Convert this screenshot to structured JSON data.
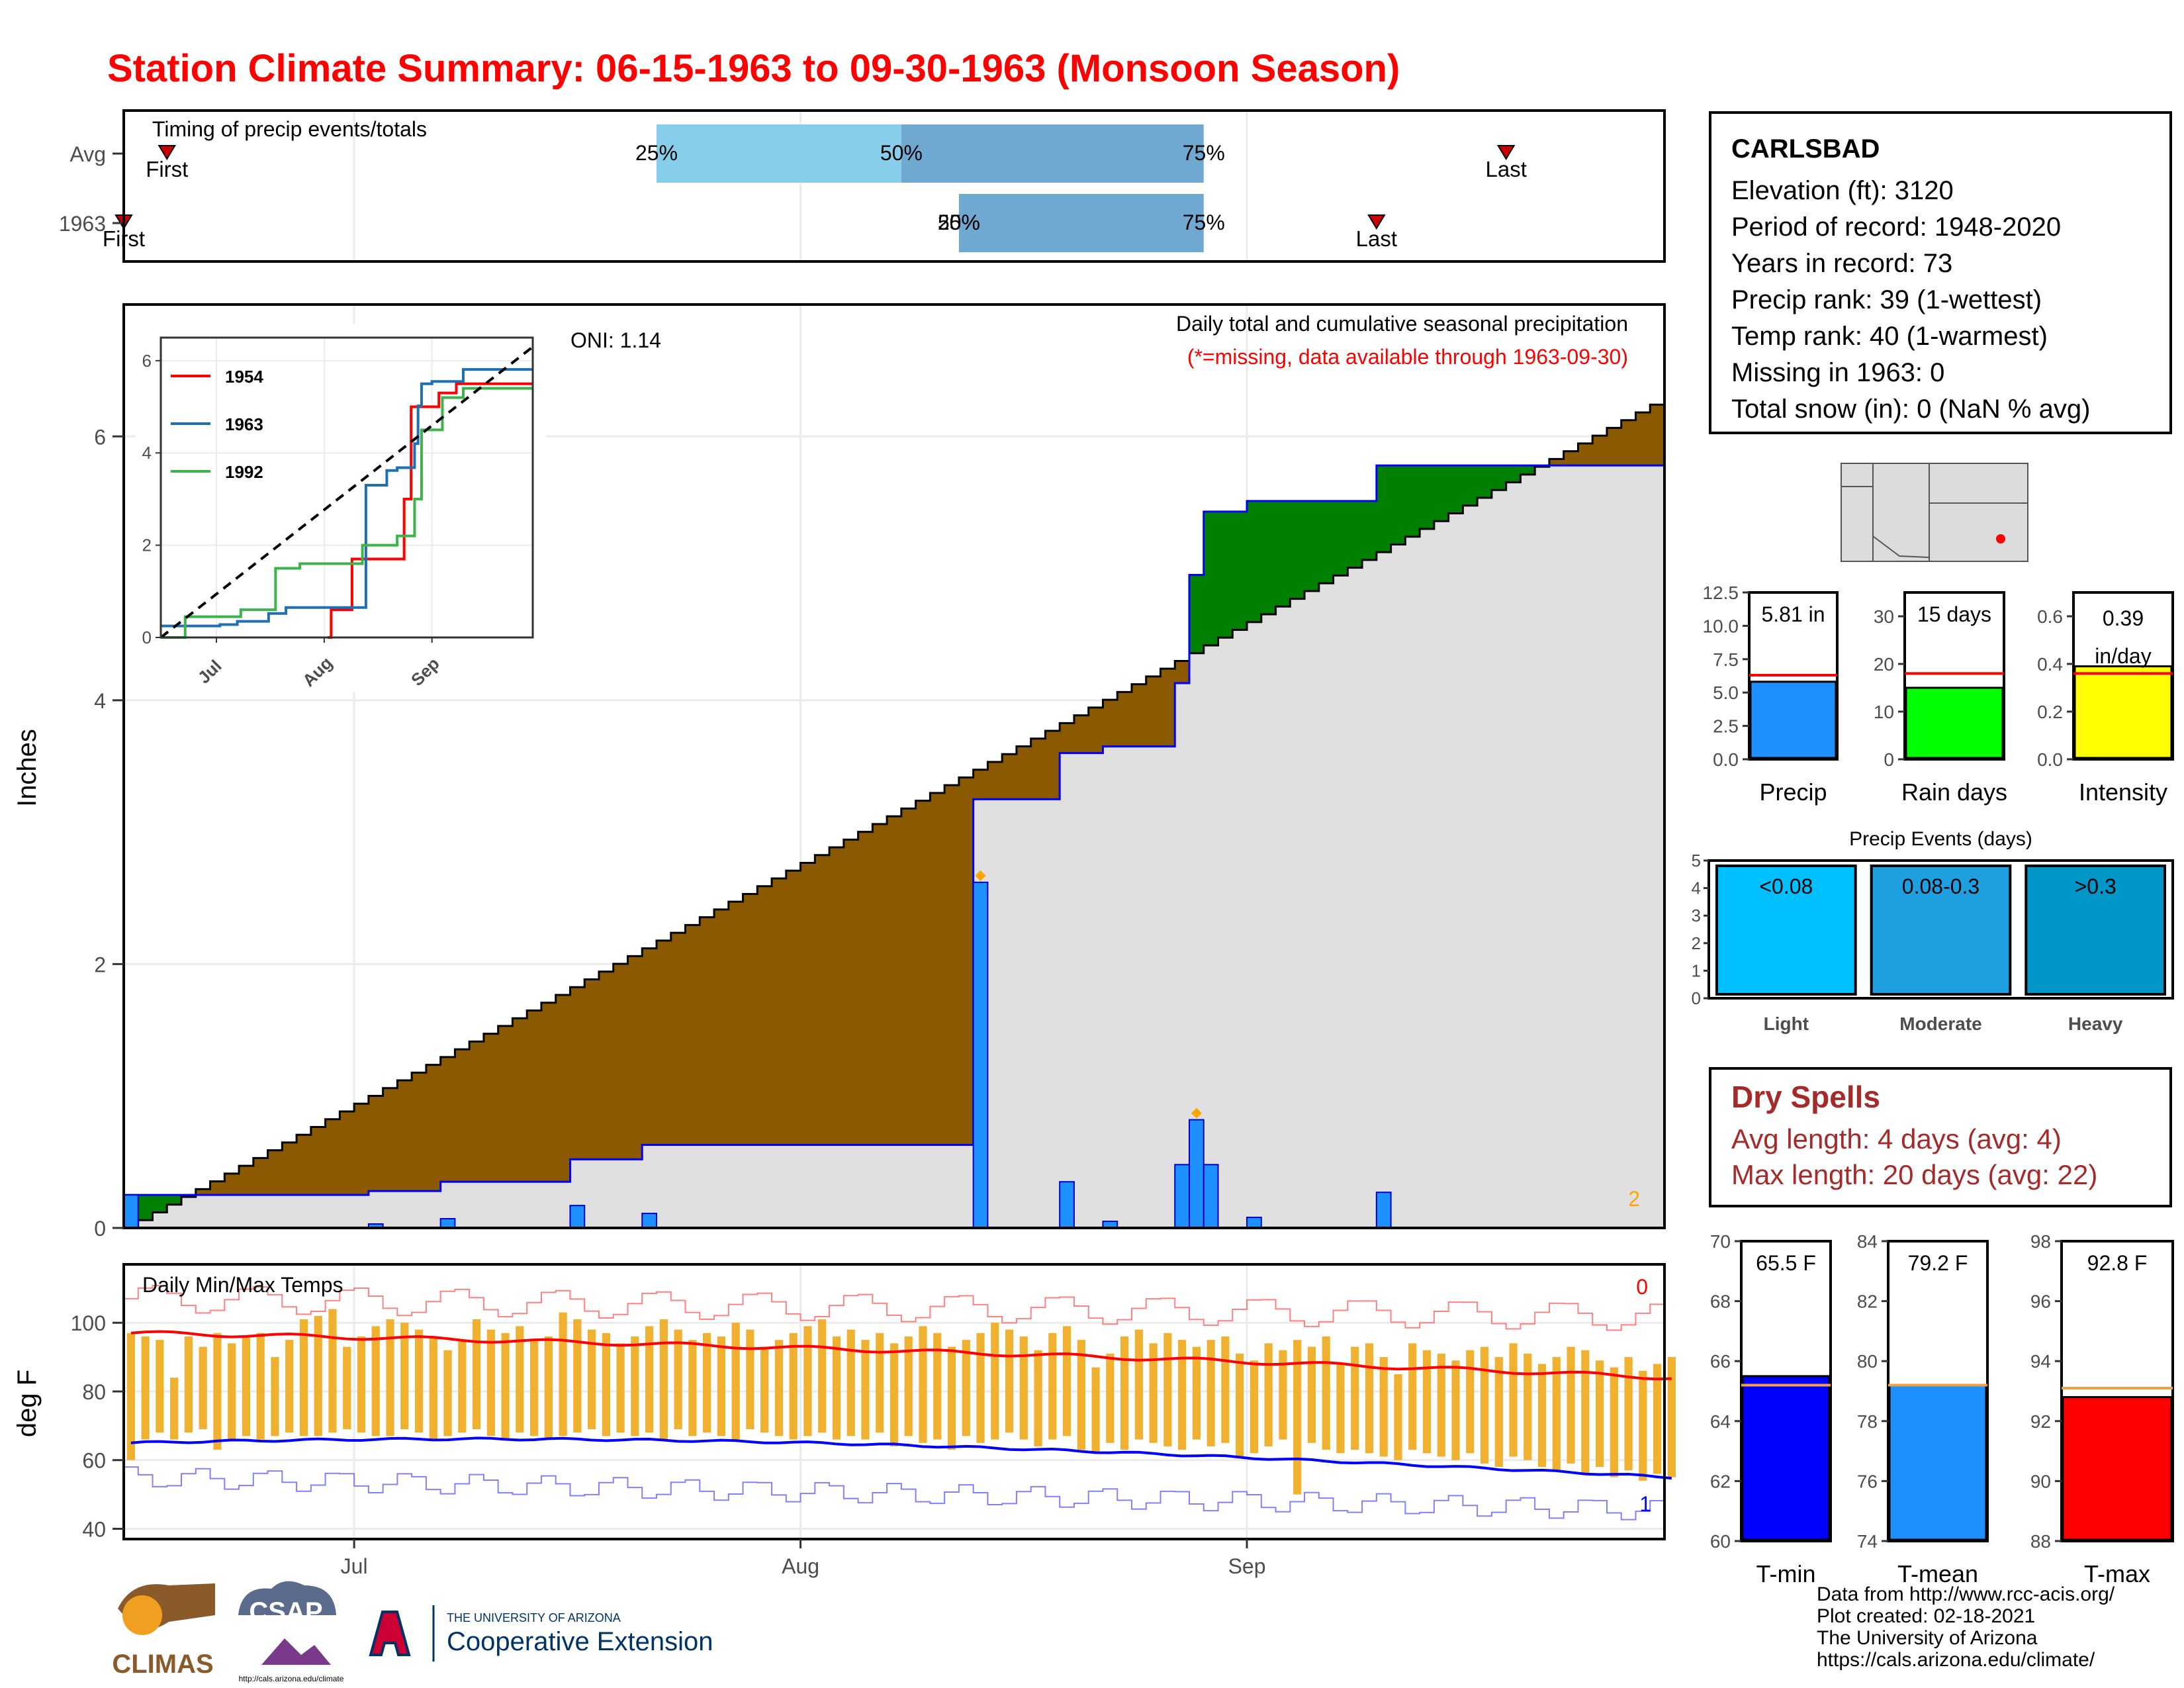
{
  "title": "Station Climate Summary: 06-15-1963 to 09-30-1963 (Monsoon Season)",
  "station": {
    "name": "CARLSBAD",
    "lines": [
      "Elevation (ft): 3120",
      "Period of record: 1948-2020",
      "Years in record: 73",
      "Precip rank: 39 (1-wettest)",
      "Temp rank: 40 (1-warmest)",
      "Missing in 1963: 0",
      "Total snow (in): 0 (NaN % avg)"
    ]
  },
  "dry_spells": {
    "title": "Dry Spells",
    "avg_length": "Avg length: 4 days (avg: 4)",
    "max_length": "Max length: 20 days (avg: 22)"
  },
  "credits": [
    "Data from http://www.rcc-acis.org/",
    "Plot created: 02-18-2021",
    "The University of Arizona",
    "https://cals.arizona.edu/climate/"
  ],
  "logos": {
    "climas": "CLIMAS",
    "csap": "CSAP",
    "csap_url": "http://cals.arizona.edu/climate",
    "ua_line1": "THE UNIVERSITY OF ARIZONA",
    "ua_line2": "Cooperative Extension"
  },
  "colors": {
    "surplus": "#008000",
    "deficit": "#8b5a00",
    "obs_line": "#0000ff",
    "bars": "#1e90ff",
    "background_fill": "#e0e0e0",
    "title": "#ff0000",
    "tmax_avg": "#ff0000",
    "tmin_avg": "#0000ff",
    "temp_bars": "#f0b030"
  },
  "chart_data": [
    {
      "id": "timing",
      "type": "bar",
      "title": "Timing of precip events/totals",
      "categories": [
        "Avg",
        "1963"
      ],
      "x_axis": "date",
      "xlim": [
        "1963-06-15",
        "1963-09-30"
      ],
      "series": [
        {
          "name": "Avg",
          "first": "1963-06-18",
          "p25": "1963-07-22",
          "p50": "1963-08-08",
          "p75": "1963-08-29",
          "last": "1963-09-19",
          "first_label": "First",
          "last_label": "Last",
          "p_labels": [
            "25%",
            "50%",
            "75%"
          ]
        },
        {
          "name": "1963",
          "first": "1963-06-15",
          "p25": "1963-08-12",
          "p50": "1963-08-12",
          "p75": "1963-08-29",
          "last": "1963-09-10",
          "first_label": "First",
          "last_label": "Last",
          "p_labels": [
            "25%",
            "50%",
            "75%"
          ]
        }
      ]
    },
    {
      "id": "precip",
      "type": "area",
      "title": "Daily total and cumulative seasonal precipitation",
      "subtitle": "(*=missing, data available through 1963-09-30)",
      "ylabel": "Inches",
      "ylim": [
        0,
        7
      ],
      "yticks": [
        0,
        2,
        4,
        6
      ],
      "x_ticks": [
        "Jul",
        "Aug",
        "Sep"
      ],
      "oni_label": "ONI: 1.14",
      "corner_count": "2",
      "daily_precip": [
        {
          "date": "1963-06-15",
          "value": 0.25
        },
        {
          "date": "1963-07-02",
          "value": 0.03
        },
        {
          "date": "1963-07-07",
          "value": 0.07
        },
        {
          "date": "1963-07-16",
          "value": 0.17
        },
        {
          "date": "1963-07-21",
          "value": 0.11
        },
        {
          "date": "1963-08-13",
          "value": 2.62
        },
        {
          "date": "1963-08-19",
          "value": 0.35
        },
        {
          "date": "1963-08-22",
          "value": 0.05
        },
        {
          "date": "1963-08-27",
          "value": 0.48
        },
        {
          "date": "1963-08-28",
          "value": 0.82
        },
        {
          "date": "1963-08-29",
          "value": 0.48
        },
        {
          "date": "1963-09-01",
          "value": 0.08
        },
        {
          "date": "1963-09-10",
          "value": 0.27
        }
      ],
      "missing_markers": [
        "1963-08-13",
        "1963-08-28"
      ],
      "avg_cumulative_end": 6.3
    },
    {
      "id": "inset",
      "type": "line",
      "ylim": [
        0,
        6.5
      ],
      "yticks": [
        0,
        2,
        4,
        6
      ],
      "x_ticks": [
        "Jul",
        "Aug",
        "Sep"
      ],
      "series": [
        {
          "name": "1954",
          "color": "#ff0000",
          "points": [
            [
              "1954-08-02",
              0.0
            ],
            [
              "1954-08-03",
              0.6
            ],
            [
              "1954-08-09",
              1.7
            ],
            [
              "1954-08-24",
              3.0
            ],
            [
              "1954-08-26",
              5.0
            ],
            [
              "1954-09-03",
              5.3
            ],
            [
              "1954-09-08",
              5.5
            ],
            [
              "1954-09-30",
              5.5
            ]
          ]
        },
        {
          "name": "1963",
          "color": "#1f6fb4",
          "points": [
            [
              "1963-06-15",
              0.25
            ],
            [
              "1963-07-02",
              0.28
            ],
            [
              "1963-07-07",
              0.35
            ],
            [
              "1963-07-16",
              0.52
            ],
            [
              "1963-07-21",
              0.65
            ],
            [
              "1963-08-13",
              3.3
            ],
            [
              "1963-08-19",
              3.62
            ],
            [
              "1963-08-22",
              3.68
            ],
            [
              "1963-08-27",
              4.2
            ],
            [
              "1963-08-28",
              5.02
            ],
            [
              "1963-08-29",
              5.5
            ],
            [
              "1963-09-01",
              5.55
            ],
            [
              "1963-09-10",
              5.81
            ],
            [
              "1963-09-30",
              5.81
            ]
          ]
        },
        {
          "name": "1992",
          "color": "#3cb44b",
          "points": [
            [
              "1992-06-15",
              0.0
            ],
            [
              "1992-06-22",
              0.45
            ],
            [
              "1992-07-08",
              0.6
            ],
            [
              "1992-07-18",
              1.5
            ],
            [
              "1992-07-25",
              1.6
            ],
            [
              "1992-08-12",
              2.0
            ],
            [
              "1992-08-22",
              2.2
            ],
            [
              "1992-08-27",
              3.0
            ],
            [
              "1992-08-29",
              4.5
            ],
            [
              "1992-09-04",
              5.2
            ],
            [
              "1992-09-10",
              5.4
            ],
            [
              "1992-09-30",
              5.4
            ]
          ]
        },
        {
          "name": "Avg",
          "color": "#000000",
          "dashed": true,
          "points": [
            [
              "avg-06-15",
              0.0
            ],
            [
              "avg-09-30",
              6.3
            ]
          ]
        }
      ]
    },
    {
      "id": "temps",
      "type": "bar",
      "title": "Daily Min/Max Temps",
      "ylabel": "deg F",
      "ylim": [
        37,
        117
      ],
      "yticks": [
        40,
        60,
        80,
        100
      ],
      "x_ticks": [
        "Jul",
        "Aug",
        "Sep"
      ],
      "corner_top": "0",
      "corner_bottom": "1",
      "tmax_seed": [
        97,
        96,
        95,
        84,
        96,
        93,
        97,
        94,
        96,
        97,
        90,
        95,
        101,
        102,
        104,
        93,
        96,
        99,
        101,
        100,
        98,
        96,
        92,
        95,
        101,
        98,
        97,
        99,
        95,
        96,
        103,
        101,
        98,
        97,
        94,
        96,
        99,
        101,
        98,
        95,
        97,
        96,
        100,
        98,
        93,
        95,
        97,
        99,
        101,
        96,
        98,
        95,
        97,
        94,
        96,
        99,
        97,
        93,
        95,
        97,
        100,
        98,
        96,
        92,
        97,
        99,
        95,
        87,
        91,
        96,
        98,
        94,
        97,
        95,
        93,
        95,
        96,
        91,
        89,
        94,
        92,
        95,
        93,
        96,
        88,
        93,
        94,
        90,
        85,
        94,
        92,
        91,
        89,
        92,
        93,
        90,
        94,
        91,
        88,
        90,
        93,
        92,
        89,
        87,
        90,
        86,
        88,
        90
      ],
      "tmin_seed": [
        60,
        66,
        68,
        66,
        68,
        69,
        63,
        66,
        67,
        66,
        67,
        68,
        67,
        67,
        68,
        69,
        68,
        67,
        67,
        69,
        68,
        66,
        67,
        68,
        69,
        67,
        66,
        68,
        67,
        66,
        67,
        68,
        69,
        67,
        68,
        67,
        68,
        66,
        69,
        67,
        68,
        67,
        66,
        69,
        68,
        67,
        66,
        67,
        68,
        66,
        67,
        66,
        68,
        64,
        67,
        65,
        66,
        63,
        67,
        65,
        66,
        68,
        66,
        64,
        66,
        67,
        63,
        62,
        65,
        63,
        66,
        65,
        64,
        63,
        66,
        64,
        65,
        61,
        62,
        64,
        66,
        50,
        65,
        63,
        62,
        63,
        62,
        61,
        60,
        63,
        62,
        61,
        60,
        62,
        59,
        58,
        61,
        60,
        58,
        57,
        59,
        56,
        58,
        55,
        57,
        54,
        56,
        55
      ],
      "avg_max_start": 97,
      "avg_max_end": 84,
      "avg_min_start": 65,
      "avg_min_end": 55
    },
    {
      "id": "mini_precip",
      "type": "bar",
      "categories": [
        "Precip"
      ],
      "values": [
        5.81
      ],
      "avg": 6.3,
      "ylim": [
        0,
        12.5
      ],
      "yticks": [
        "0.0",
        "2.5",
        "5.0",
        "7.5",
        "10.0",
        "12.5"
      ],
      "label": "5.81 in",
      "color": "#1e90ff"
    },
    {
      "id": "mini_raindays",
      "type": "bar",
      "categories": [
        "Rain days"
      ],
      "values": [
        15
      ],
      "avg": 18,
      "ylim": [
        0,
        35
      ],
      "yticks": [
        "0",
        "10",
        "20",
        "30"
      ],
      "label": "15 days",
      "color": "#00ff00"
    },
    {
      "id": "mini_intensity",
      "type": "bar",
      "categories": [
        "Intensity"
      ],
      "values": [
        0.39
      ],
      "avg": 0.36,
      "ylim": [
        0,
        0.7
      ],
      "yticks": [
        "0.0",
        "0.2",
        "0.4",
        "0.6"
      ],
      "label": "0.39",
      "label2": "in/day",
      "color": "#ffff00"
    },
    {
      "id": "events",
      "type": "bar",
      "title": "Precip Events (days)",
      "categories": [
        "Light",
        "Moderate",
        "Heavy"
      ],
      "bar_labels": [
        "<0.08",
        "0.08-0.3",
        ">0.3"
      ],
      "values": [
        5,
        5,
        5
      ],
      "ylim": [
        0,
        5
      ],
      "yticks": [
        "0",
        "1",
        "2",
        "3",
        "4",
        "5"
      ],
      "colors": [
        "#00bfff",
        "#1ea0e0",
        "#0096c8"
      ]
    },
    {
      "id": "tmin_box",
      "type": "bar",
      "categories": [
        "T-min"
      ],
      "values": [
        65.5
      ],
      "avg": 65.2,
      "ylim": [
        60,
        70
      ],
      "yticks": [
        "60",
        "62",
        "64",
        "66",
        "68",
        "70"
      ],
      "label": "65.5 F",
      "color": "#0000ff"
    },
    {
      "id": "tmean_box",
      "type": "bar",
      "categories": [
        "T-mean"
      ],
      "values": [
        79.2
      ],
      "avg": 79.2,
      "ylim": [
        74,
        84
      ],
      "yticks": [
        "74",
        "76",
        "78",
        "80",
        "82",
        "84"
      ],
      "label": "79.2 F",
      "color": "#1e90ff"
    },
    {
      "id": "tmax_box",
      "type": "bar",
      "categories": [
        "T-max"
      ],
      "values": [
        92.8
      ],
      "avg": 93.1,
      "ylim": [
        88,
        98
      ],
      "yticks": [
        "88",
        "90",
        "92",
        "94",
        "96",
        "98"
      ],
      "label": "92.8 F",
      "color": "#ff0000"
    }
  ]
}
